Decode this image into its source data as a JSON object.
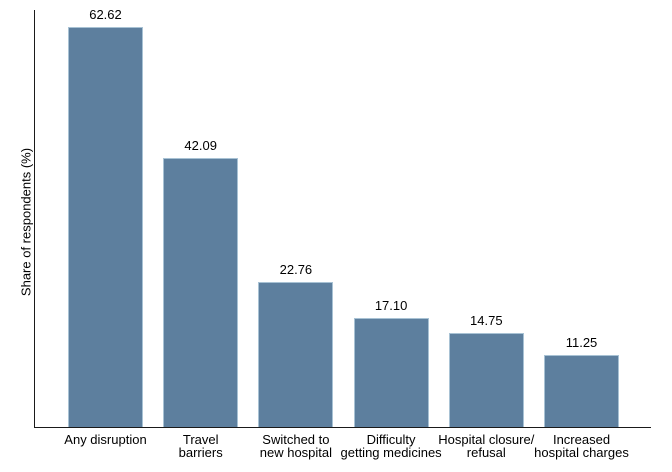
{
  "chart_data": {
    "type": "bar",
    "categories": [
      "Any disruption",
      "Travel\nbarriers",
      "Switched to\nnew hospital",
      "Difficulty\ngetting medicines",
      "Hospital closure/\nrefusal",
      "Increased\nhospital charges"
    ],
    "values": [
      62.62,
      42.09,
      22.76,
      17.1,
      14.75,
      11.25
    ],
    "value_labels": [
      "62.62",
      "42.09",
      "22.76",
      "17.10",
      "14.75",
      "11.25"
    ],
    "title": "",
    "xlabel": "",
    "ylabel": "Share of respondents (%)",
    "ylim": [
      0,
      65.3
    ],
    "grid": false,
    "legend_position": "none",
    "bar_color": "#5d7f9e",
    "bar_border_color": "#a8c2d4",
    "axis_color": "#1a1a1a",
    "text_color": "#000000"
  }
}
